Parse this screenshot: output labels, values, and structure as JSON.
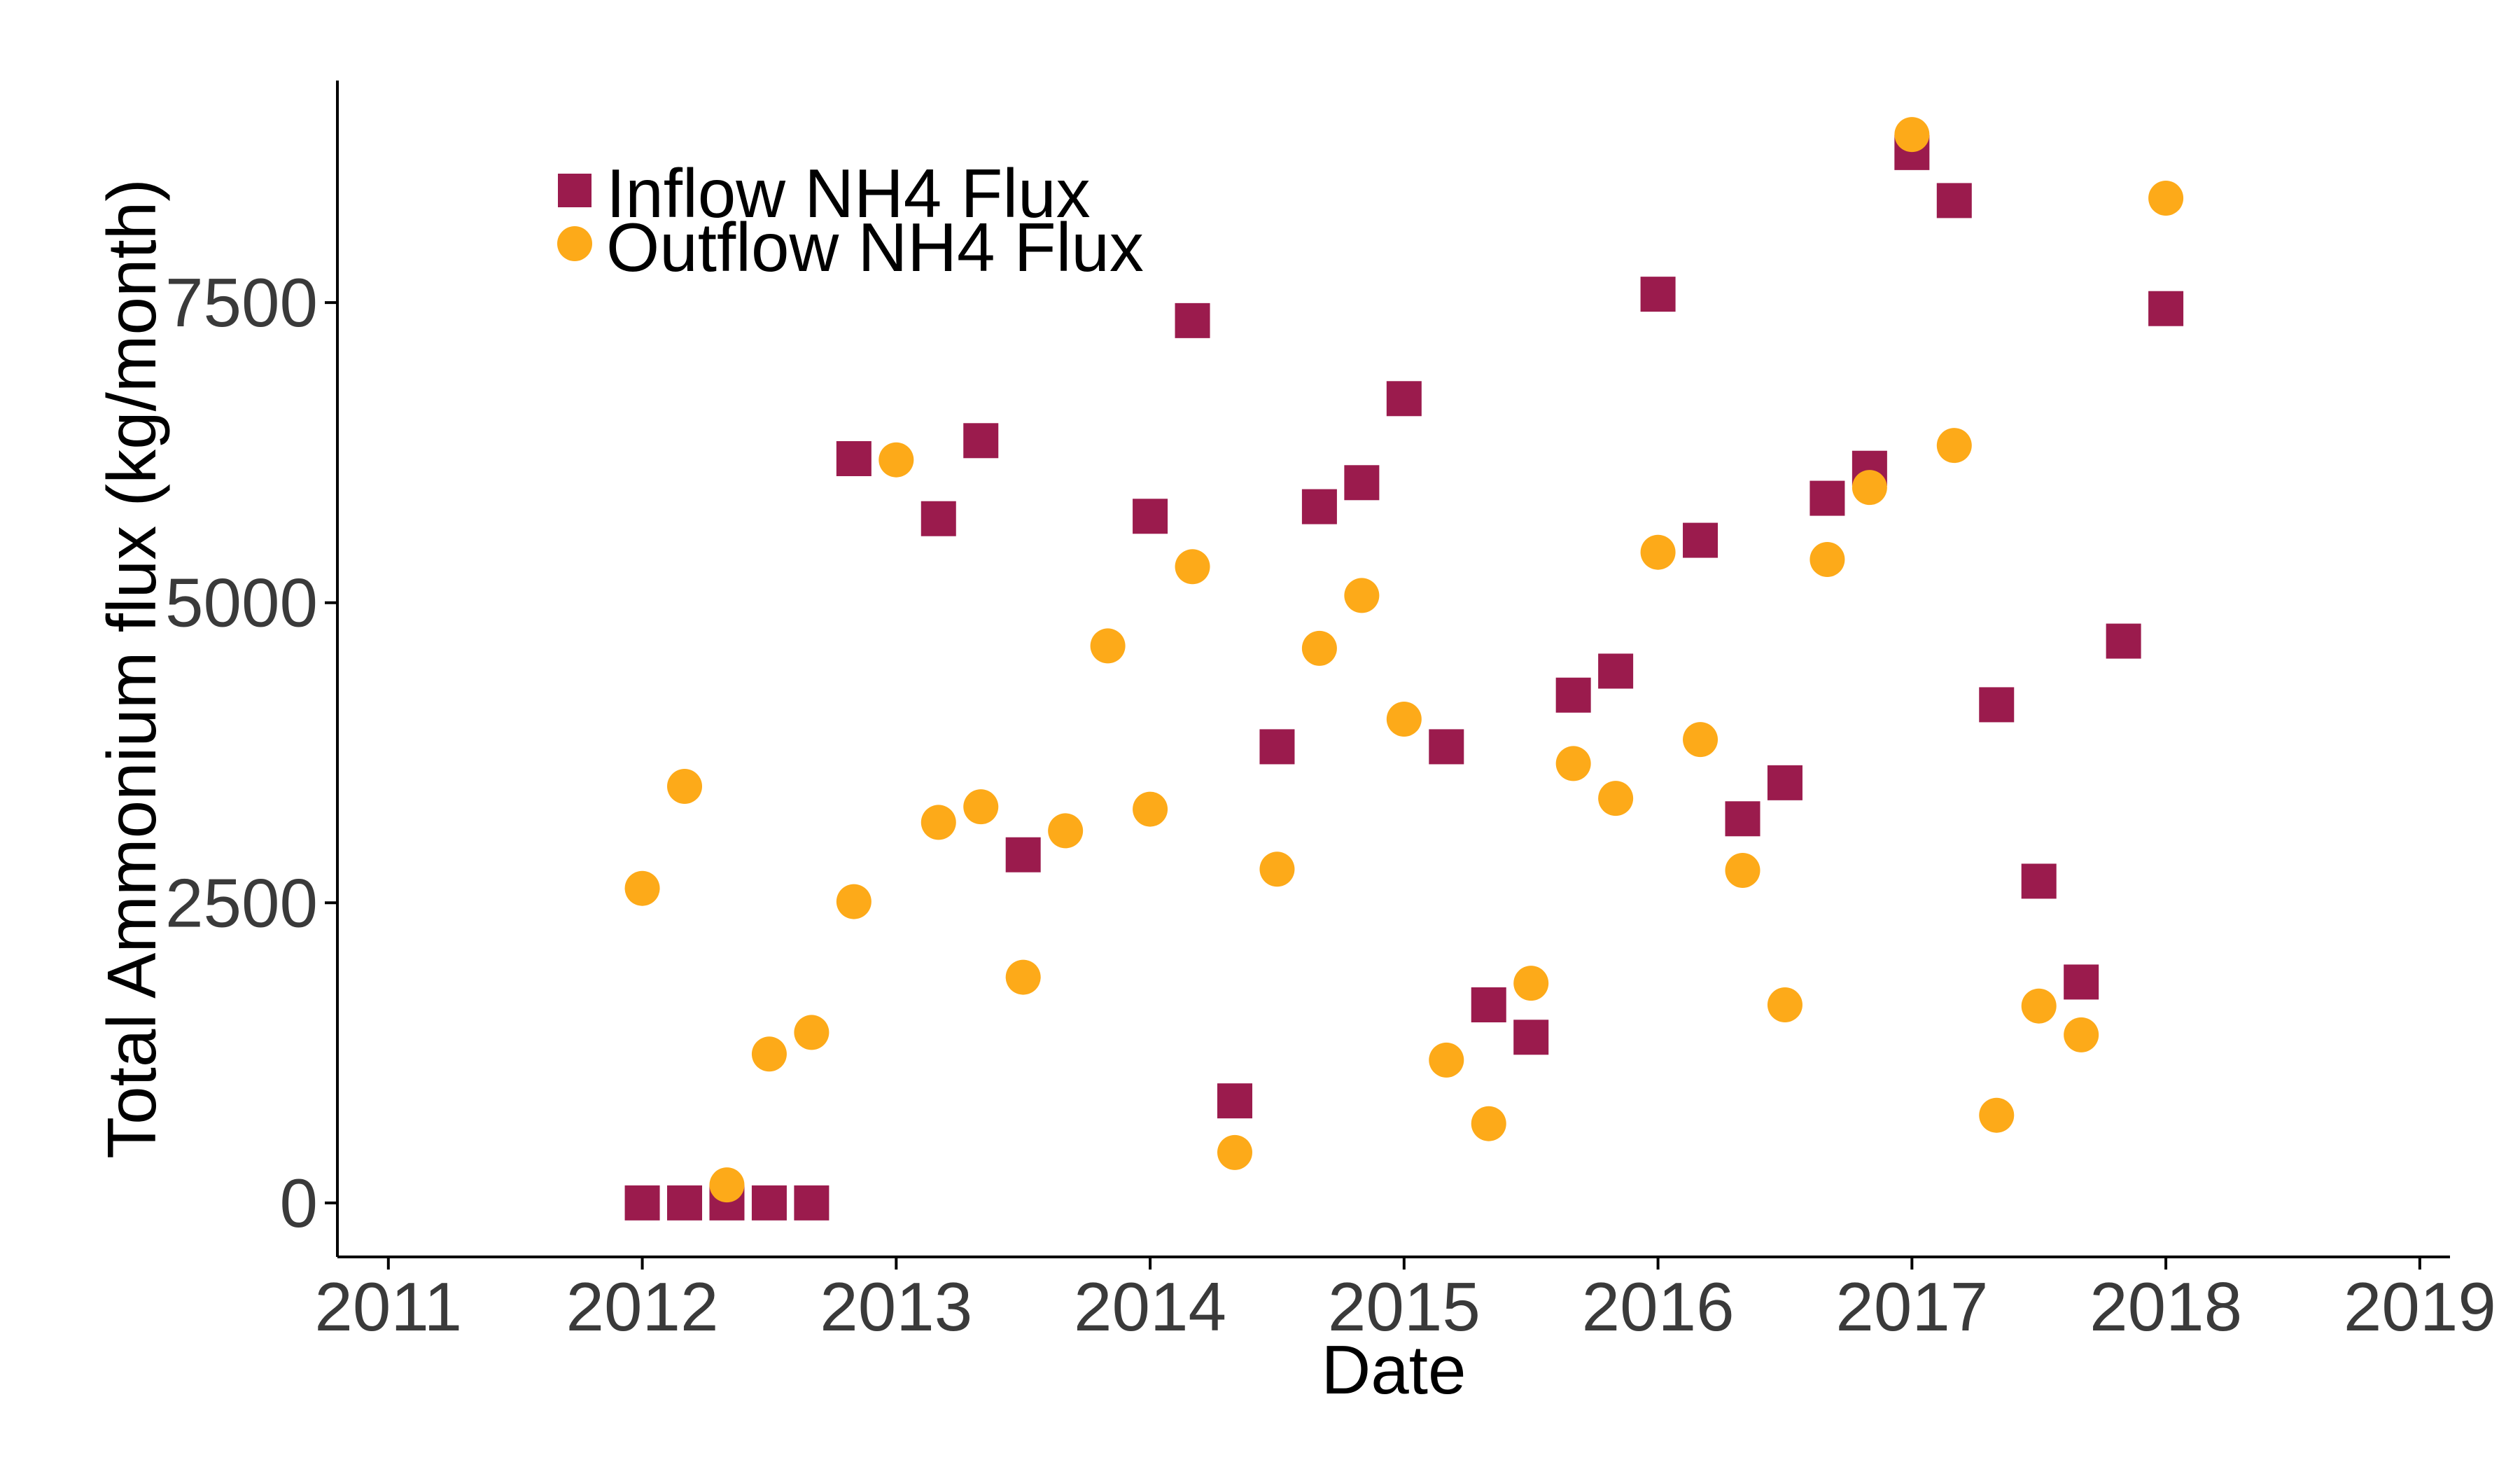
{
  "colors": {
    "inflow": "#9b1b4d",
    "outflow": "#fdaa19"
  },
  "chart_data": {
    "type": "scatter",
    "title": "",
    "xlabel": "Date",
    "ylabel": "Total Ammonium flux (kg/month)",
    "xlim": [
      "2010-10-19",
      "2019-02-14"
    ],
    "ylim": [
      -450,
      9350
    ],
    "x_ticks": [
      "2011",
      "2012",
      "2013",
      "2014",
      "2015",
      "2016",
      "2017",
      "2018",
      "2019"
    ],
    "y_ticks": [
      0,
      2500,
      5000,
      7500
    ],
    "y_tick_labels": [
      "0",
      "2500",
      "5000",
      "7500"
    ],
    "grid": false,
    "legend": {
      "position": "top-left",
      "entries": [
        {
          "label": "Inflow NH4 Flux",
          "marker": "square",
          "color_key": "inflow"
        },
        {
          "label": "Outflow NH4 Flux",
          "marker": "circle",
          "color_key": "outflow"
        }
      ]
    },
    "series": [
      {
        "name": "Inflow NH4 Flux",
        "marker": "square",
        "points": [
          {
            "x": "2012-01",
            "y": 0
          },
          {
            "x": "2012-03",
            "y": 0
          },
          {
            "x": "2012-05",
            "y": 0
          },
          {
            "x": "2012-07",
            "y": 0
          },
          {
            "x": "2012-09",
            "y": 0
          },
          {
            "x": "2012-11",
            "y": 6200
          },
          {
            "x": "2013-03",
            "y": 5700
          },
          {
            "x": "2013-05",
            "y": 6350
          },
          {
            "x": "2013-07",
            "y": 2900
          },
          {
            "x": "2014-01",
            "y": 5720
          },
          {
            "x": "2014-03",
            "y": 7350
          },
          {
            "x": "2014-05",
            "y": 850
          },
          {
            "x": "2014-07",
            "y": 3800
          },
          {
            "x": "2014-09",
            "y": 5800
          },
          {
            "x": "2014-11",
            "y": 6000
          },
          {
            "x": "2015-01",
            "y": 6700
          },
          {
            "x": "2015-03",
            "y": 3800
          },
          {
            "x": "2015-05",
            "y": 1650
          },
          {
            "x": "2015-07",
            "y": 1380
          },
          {
            "x": "2015-09",
            "y": 4230
          },
          {
            "x": "2015-11",
            "y": 4430
          },
          {
            "x": "2016-01",
            "y": 7570
          },
          {
            "x": "2016-03",
            "y": 5520
          },
          {
            "x": "2016-05",
            "y": 3200
          },
          {
            "x": "2016-07",
            "y": 3500
          },
          {
            "x": "2016-09",
            "y": 5870
          },
          {
            "x": "2016-11",
            "y": 6120
          },
          {
            "x": "2017-01",
            "y": 8750
          },
          {
            "x": "2017-03",
            "y": 8350
          },
          {
            "x": "2017-05",
            "y": 4150
          },
          {
            "x": "2017-07",
            "y": 2680
          },
          {
            "x": "2017-09",
            "y": 1840
          },
          {
            "x": "2017-11",
            "y": 4680
          },
          {
            "x": "2018-01",
            "y": 7450
          }
        ]
      },
      {
        "name": "Outflow NH4 Flux",
        "marker": "circle",
        "points": [
          {
            "x": "2012-01",
            "y": 2620
          },
          {
            "x": "2012-03",
            "y": 3470
          },
          {
            "x": "2012-05",
            "y": 150
          },
          {
            "x": "2012-07",
            "y": 1240
          },
          {
            "x": "2012-09",
            "y": 1420
          },
          {
            "x": "2012-11",
            "y": 2510
          },
          {
            "x": "2013-01",
            "y": 6190
          },
          {
            "x": "2013-03",
            "y": 3170
          },
          {
            "x": "2013-05",
            "y": 3300
          },
          {
            "x": "2013-07",
            "y": 1880
          },
          {
            "x": "2013-09",
            "y": 3100
          },
          {
            "x": "2013-11",
            "y": 4640
          },
          {
            "x": "2014-01",
            "y": 3280
          },
          {
            "x": "2014-03",
            "y": 5300
          },
          {
            "x": "2014-05",
            "y": 420
          },
          {
            "x": "2014-07",
            "y": 2780
          },
          {
            "x": "2014-09",
            "y": 4620
          },
          {
            "x": "2014-11",
            "y": 5060
          },
          {
            "x": "2015-01",
            "y": 4030
          },
          {
            "x": "2015-03",
            "y": 1190
          },
          {
            "x": "2015-05",
            "y": 660
          },
          {
            "x": "2015-07",
            "y": 1830
          },
          {
            "x": "2015-09",
            "y": 3660
          },
          {
            "x": "2015-11",
            "y": 3370
          },
          {
            "x": "2016-01",
            "y": 5420
          },
          {
            "x": "2016-03",
            "y": 3860
          },
          {
            "x": "2016-05",
            "y": 2770
          },
          {
            "x": "2016-07",
            "y": 1650
          },
          {
            "x": "2016-09",
            "y": 5360
          },
          {
            "x": "2016-11",
            "y": 5960
          },
          {
            "x": "2017-01",
            "y": 8900
          },
          {
            "x": "2017-03",
            "y": 6310
          },
          {
            "x": "2017-05",
            "y": 730
          },
          {
            "x": "2017-07",
            "y": 1640
          },
          {
            "x": "2017-09",
            "y": 1400
          },
          {
            "x": "2018-01",
            "y": 8370
          }
        ]
      }
    ]
  }
}
